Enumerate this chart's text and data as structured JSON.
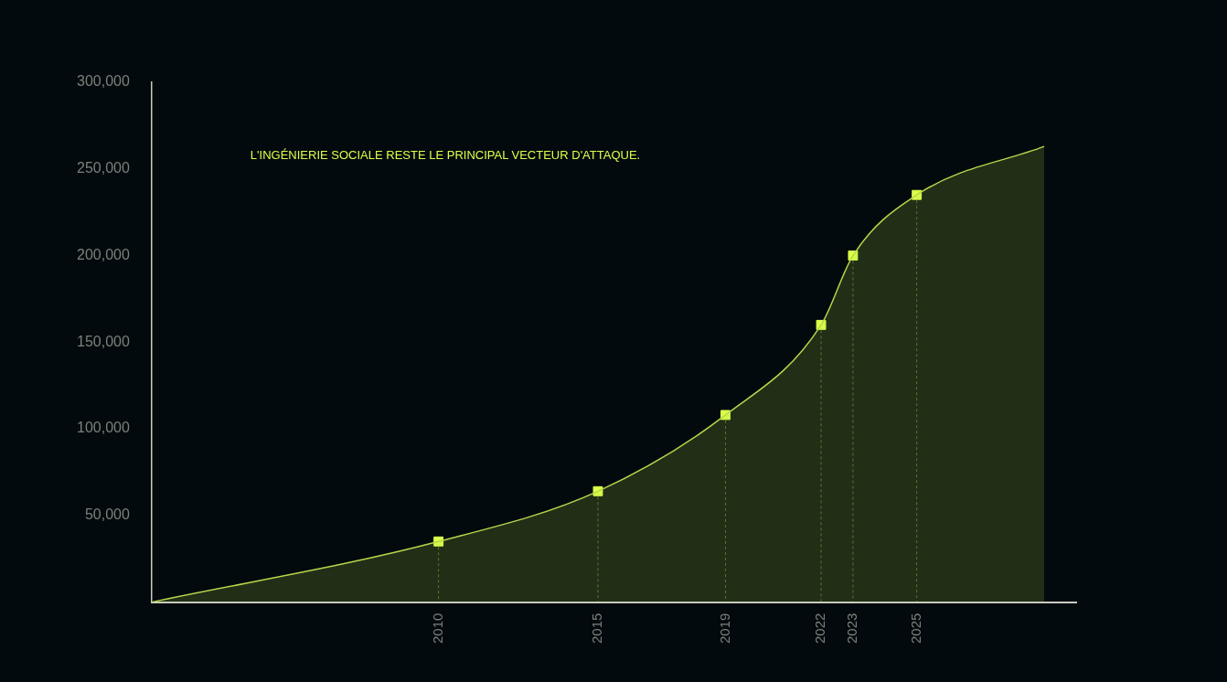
{
  "chart_data": {
    "type": "line",
    "annotations": [
      "L'INGÉNIERIE SOCIALE RESTE LE PRINCIPAL VECTEUR D'ATTAQUE."
    ],
    "xlim": [
      2001,
      2030
    ],
    "xticks": [
      2010,
      2015,
      2019,
      2022,
      2023,
      2025
    ],
    "ylim": [
      0,
      300000
    ],
    "yticks": [
      {
        "value": 50000,
        "label": "50,000"
      },
      {
        "value": 100000,
        "label": "100,000"
      },
      {
        "value": 150000,
        "label": "150,000"
      },
      {
        "value": 200000,
        "label": "200,000"
      },
      {
        "value": 250000,
        "label": "250,000"
      },
      {
        "value": 300000,
        "label": "300,000"
      }
    ],
    "grid": false,
    "legend": false,
    "series": [
      {
        "type": "area",
        "marker": "none",
        "color": "#b8d64a",
        "x": [
          2001,
          2010,
          2015,
          2019,
          2022,
          2023,
          2025,
          2029
        ],
        "values": [
          0,
          35000,
          64000,
          108000,
          160000,
          200000,
          235000,
          263000
        ]
      },
      {
        "type": "scatter",
        "marker": "square",
        "color": "#dcff4a",
        "x": [
          2010,
          2015,
          2019,
          2022,
          2023,
          2025
        ],
        "values": [
          35000,
          64000,
          108000,
          160000,
          200000,
          235000
        ],
        "errors": [
          [
            0,
            35000
          ],
          [
            0,
            64000
          ],
          [
            0,
            108000
          ],
          [
            0,
            160000
          ],
          [
            0,
            200000
          ],
          [
            0,
            235000
          ]
        ]
      }
    ]
  }
}
